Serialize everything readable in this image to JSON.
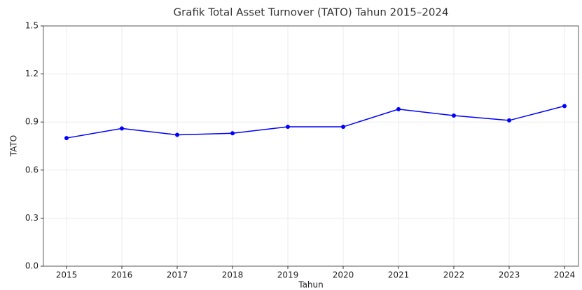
{
  "chart_data": {
    "type": "line",
    "title": "Grafik Total Asset Turnover (TATO) Tahun 2015–2024",
    "x_label": "Tahun",
    "y_label": "TATO",
    "categories": [
      "2015",
      "2016",
      "2017",
      "2018",
      "2019",
      "2020",
      "2021",
      "2022",
      "2023",
      "2024"
    ],
    "series": [
      {
        "name": "TATO",
        "color": "#0000ff",
        "values": [
          0.8,
          0.86,
          0.82,
          0.83,
          0.87,
          0.87,
          0.98,
          0.94,
          0.91,
          1.0
        ]
      }
    ],
    "ylim": [
      0,
      1.5
    ],
    "yticks": [
      {
        "value": 0,
        "label": "0.0"
      },
      0.3,
      0.6,
      0.9,
      1.2,
      {
        "value": 1.5,
        "label": "1.5"
      }
    ],
    "grid": true
  }
}
